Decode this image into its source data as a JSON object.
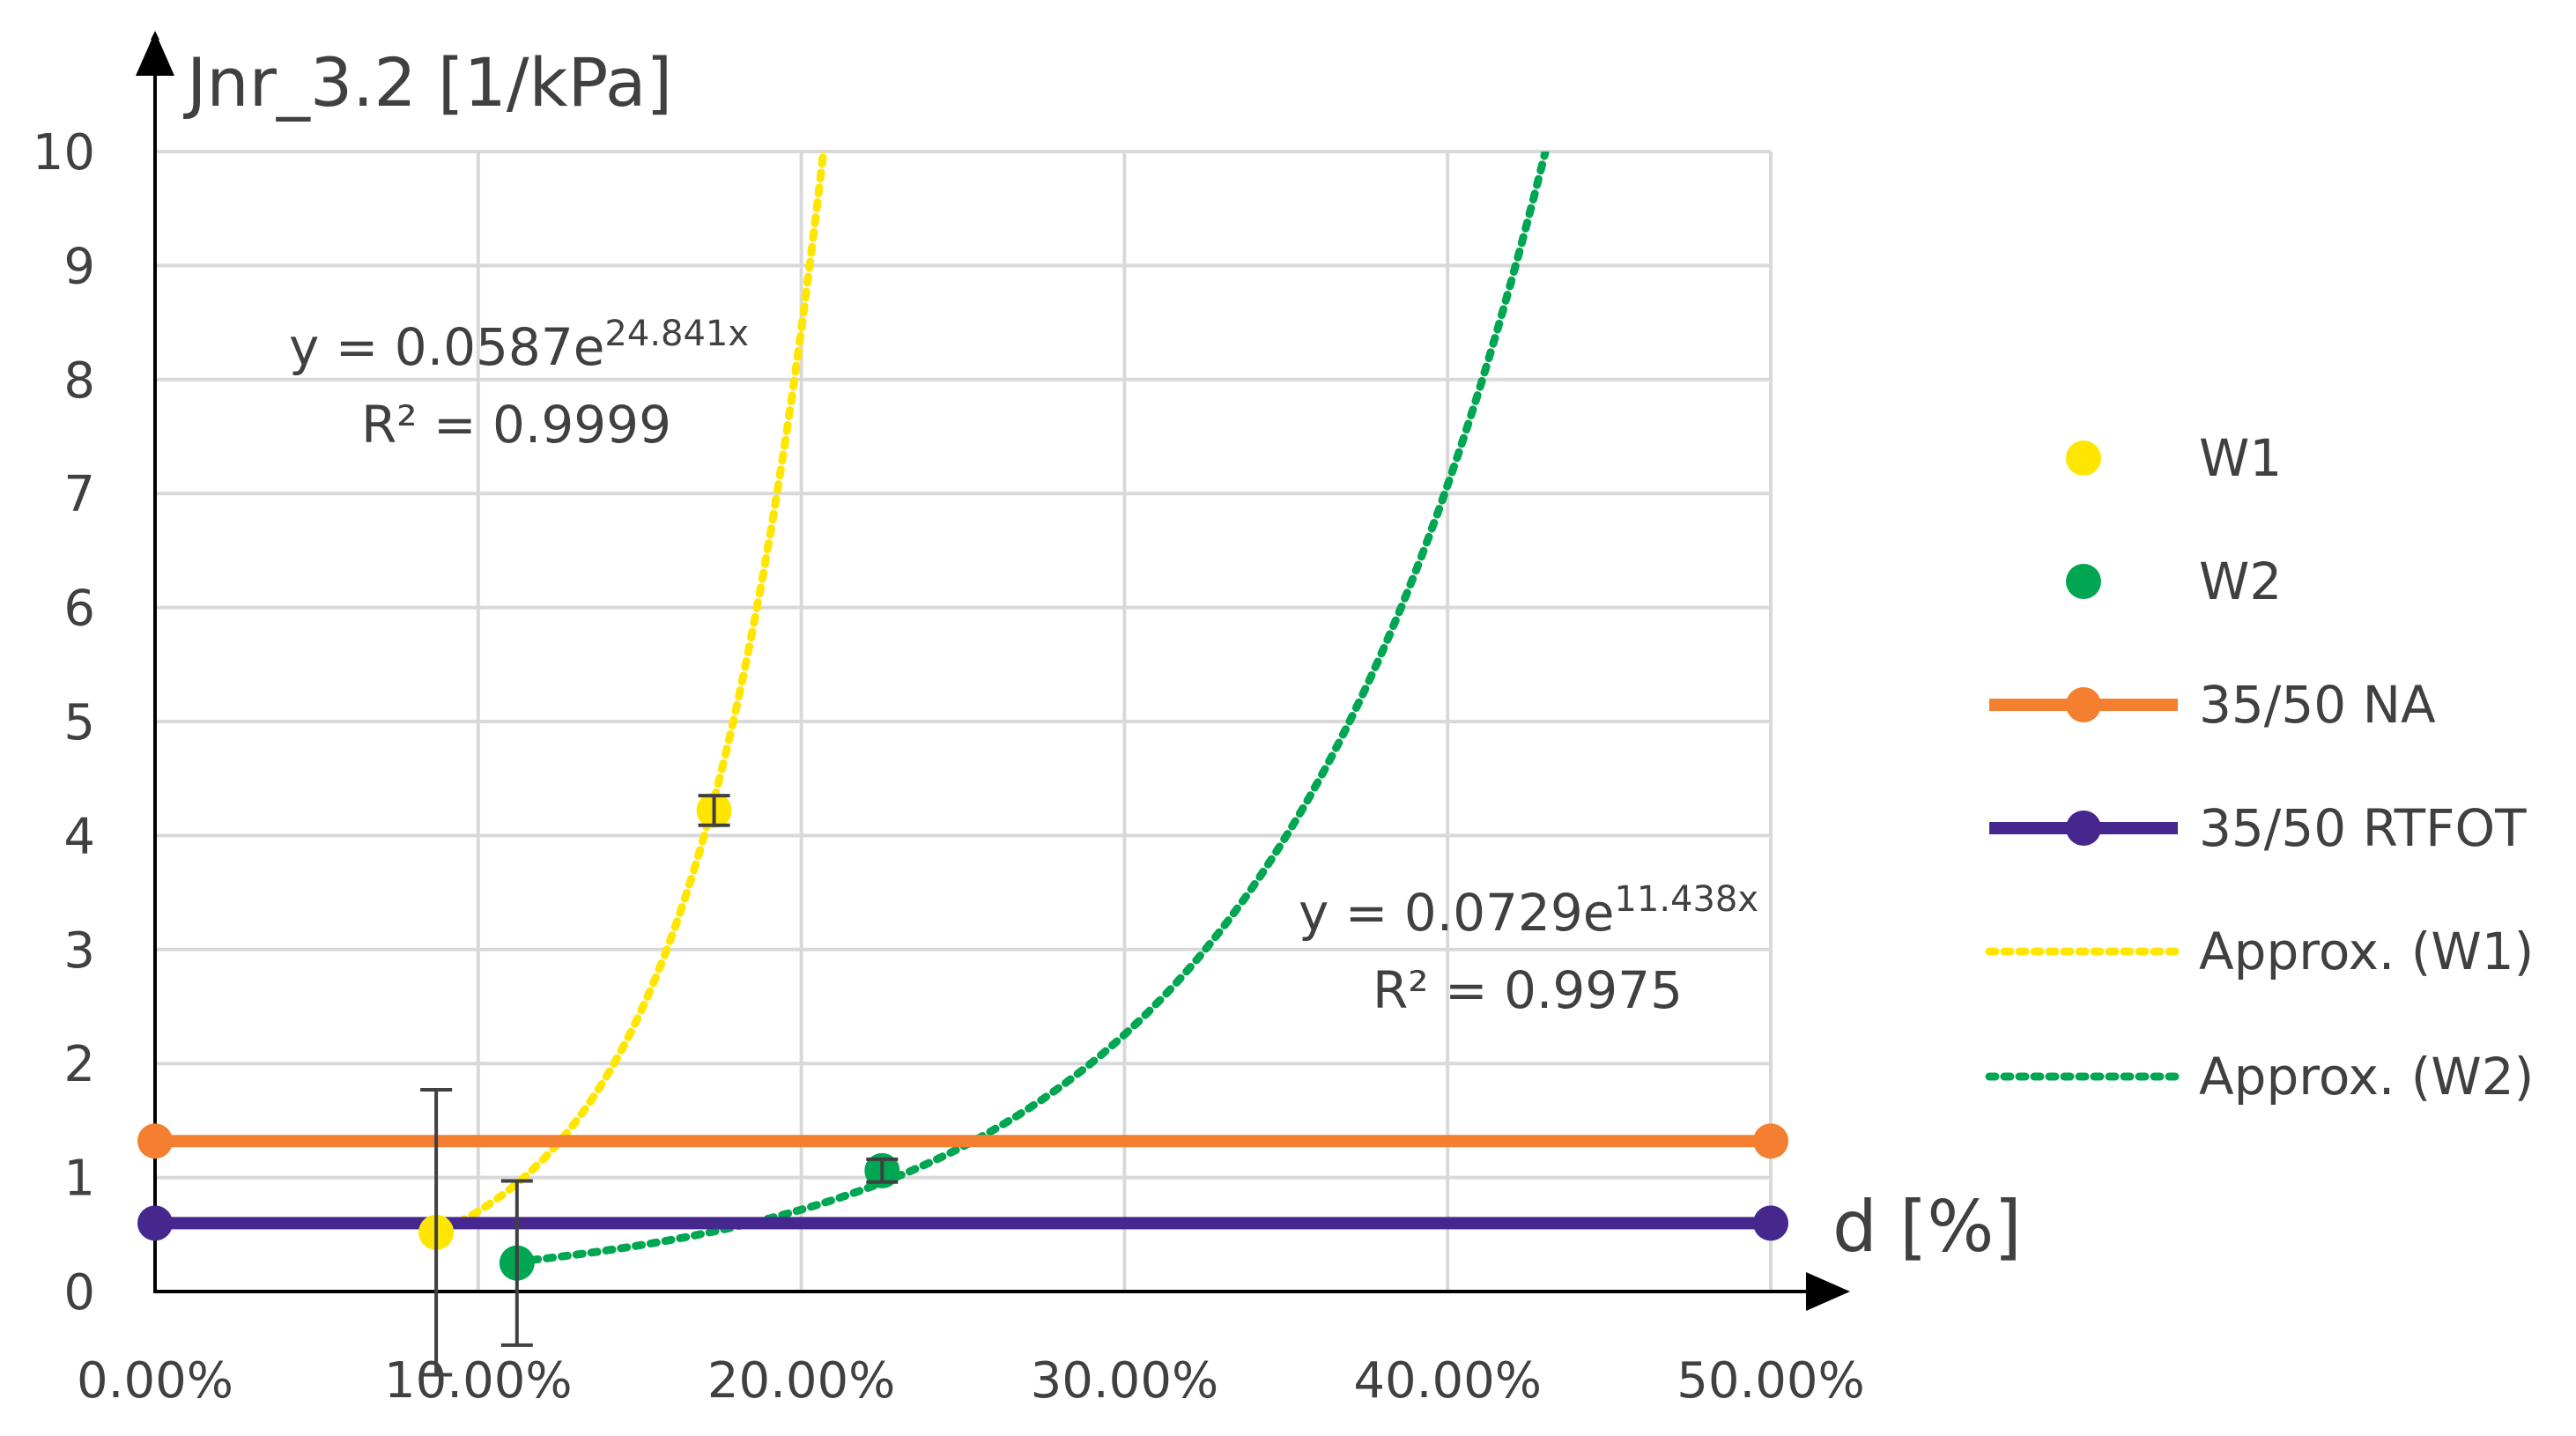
{
  "chart_data": {
    "type": "scatter",
    "ylabel": "Jnr_3.2 [1/kPa]",
    "xlabel": "d [%]",
    "xlim": [
      0,
      0.5
    ],
    "ylim": [
      0,
      10
    ],
    "xticks": [
      0,
      0.1,
      0.2,
      0.3,
      0.4,
      0.5
    ],
    "xtick_labels": [
      "0.00%",
      "10.00%",
      "20.00%",
      "30.00%",
      "40.00%",
      "50.00%"
    ],
    "yticks": [
      0,
      1,
      2,
      3,
      4,
      5,
      6,
      7,
      8,
      9,
      10
    ],
    "ytick_labels": [
      "0",
      "1",
      "2",
      "3",
      "4",
      "5",
      "6",
      "7",
      "8",
      "9",
      "10"
    ],
    "grid": true,
    "legend_position": "right",
    "series": [
      {
        "name": "W1",
        "kind": "points",
        "color": "#ffe600",
        "points": [
          {
            "x": 0.087,
            "y": 0.52,
            "err": 1.25
          },
          {
            "x": 0.173,
            "y": 4.22,
            "err": 0.13
          }
        ]
      },
      {
        "name": "W2",
        "kind": "points",
        "color": "#00a651",
        "points": [
          {
            "x": 0.112,
            "y": 0.25,
            "err": 0.72
          },
          {
            "x": 0.225,
            "y": 1.06,
            "err": 0.1
          }
        ]
      },
      {
        "name": "35/50 NA",
        "kind": "hline",
        "color": "#f47f30",
        "y": 1.32
      },
      {
        "name": "35/50 RTFOT",
        "kind": "hline",
        "color": "#46278d",
        "y": 0.6
      },
      {
        "name": "Approx. (W1)",
        "kind": "exp_fit",
        "color": "#ffe600",
        "a": 0.0587,
        "b": 24.841,
        "x_from": 0.09
      },
      {
        "name": "Approx. (W2)",
        "kind": "exp_fit",
        "color": "#00a651",
        "a": 0.0729,
        "b": 11.438,
        "x_from": 0.112
      }
    ],
    "annotations": [
      {
        "series": "Approx. (W1)",
        "eq_prefix": "y = 0.0587e",
        "eq_exp": "24.841x",
        "r2": "R² = 0.9999"
      },
      {
        "series": "Approx. (W2)",
        "eq_prefix": "y = 0.0729e",
        "eq_exp": "11.438x",
        "r2": "R² = 0.9975"
      }
    ]
  }
}
